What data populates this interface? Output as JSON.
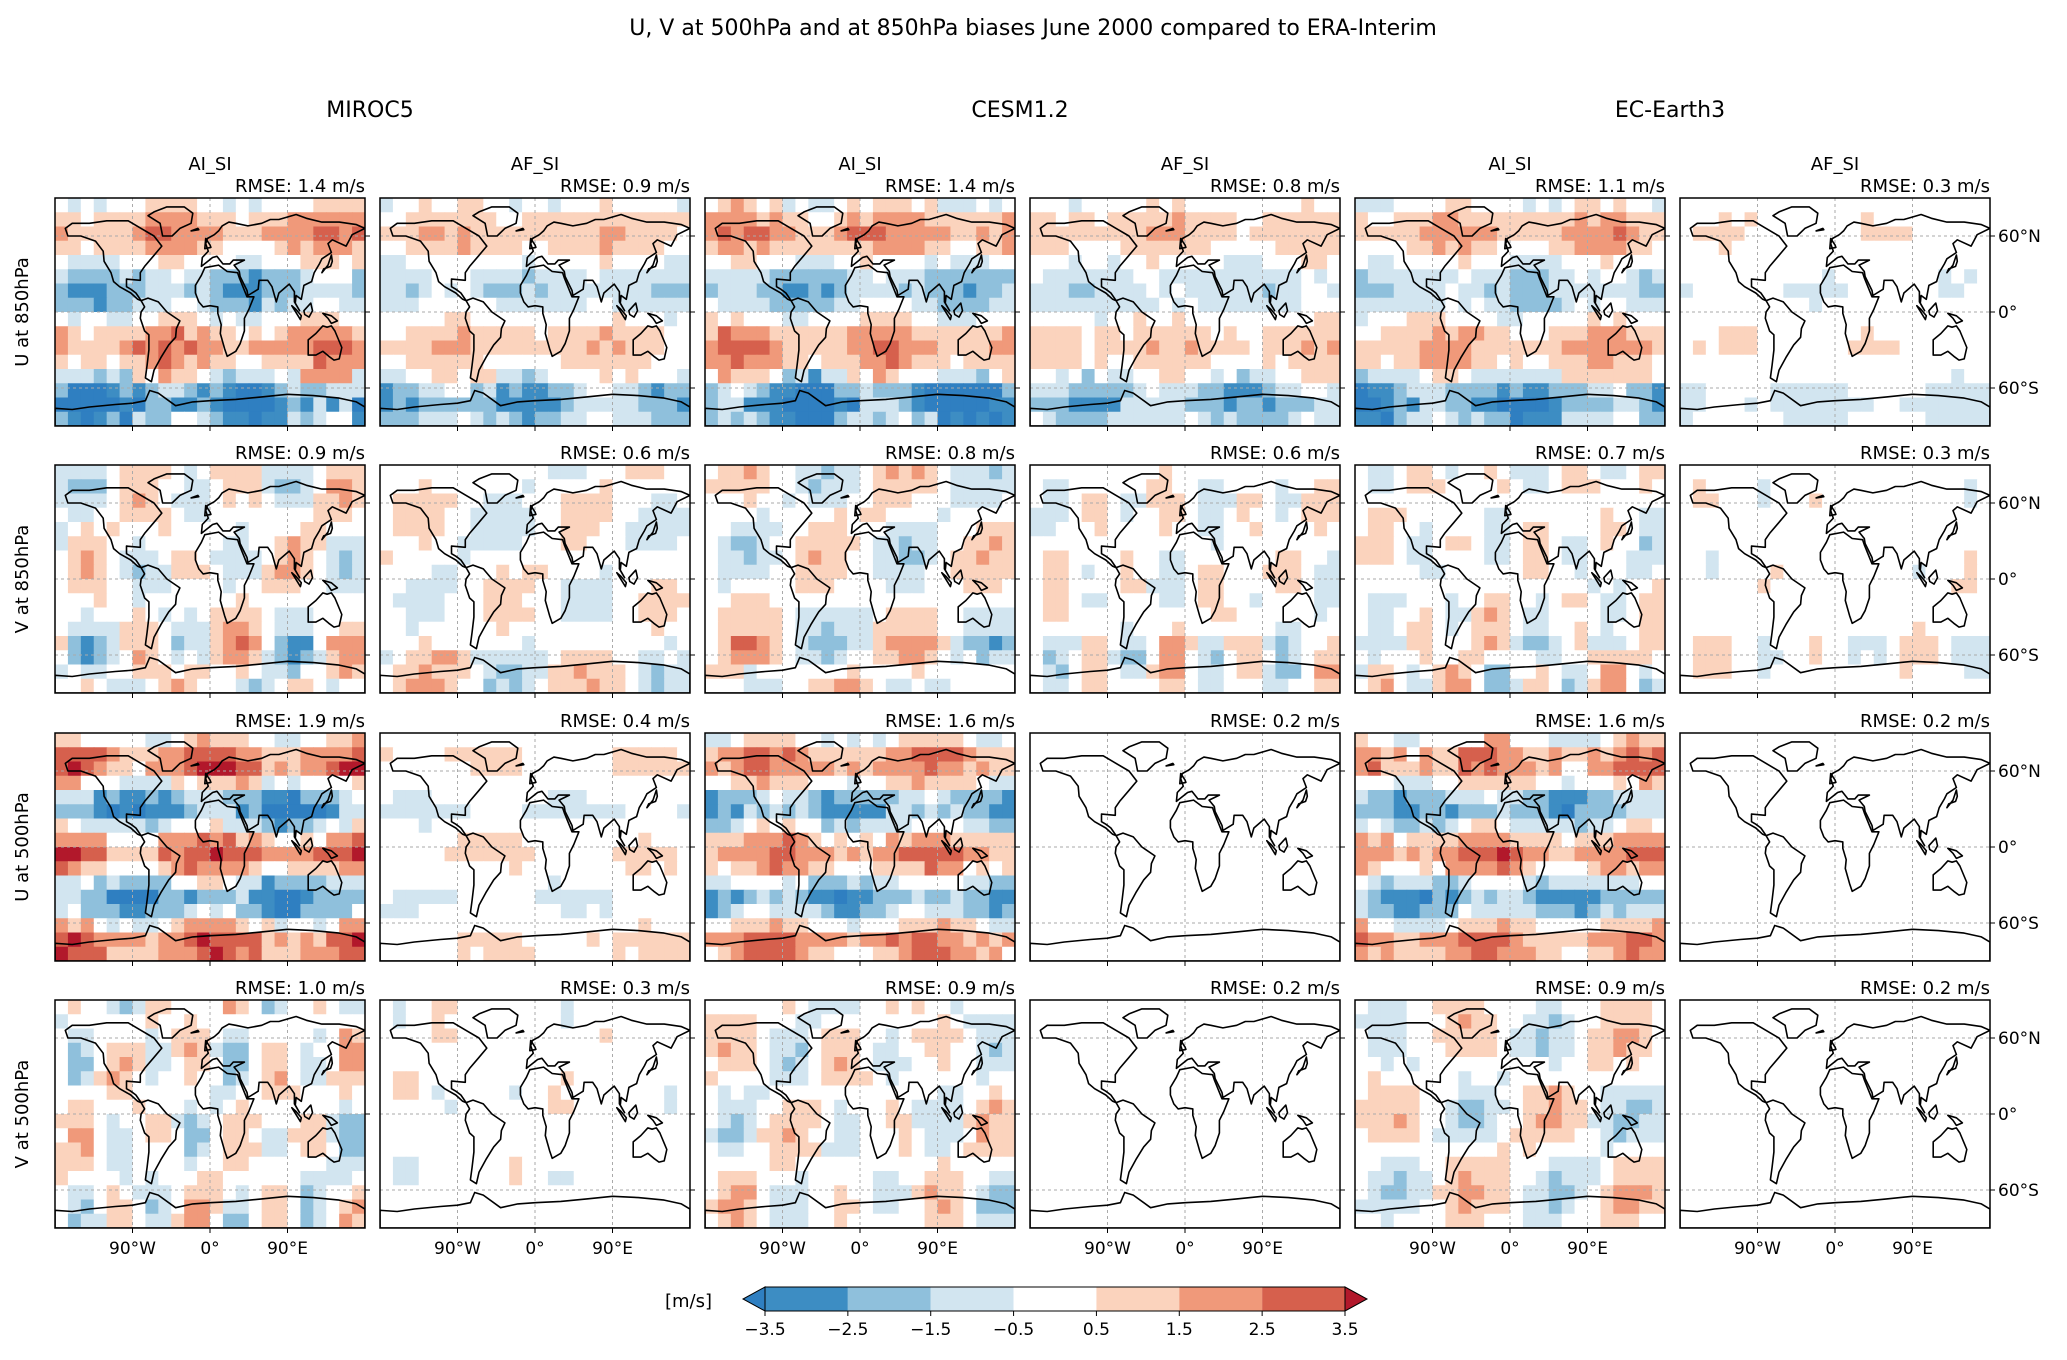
{
  "chart_data": {
    "type": "heatmap",
    "title": "U, V at 500hPa and at 850hPa biases June 2000 compared to ERA-Interim",
    "models": [
      "MIROC5",
      "CESM1.2",
      "EC-Earth3"
    ],
    "experiments": [
      "AI_SI",
      "AF_SI"
    ],
    "variables": [
      "U at 850hPa",
      "V at 850hPa",
      "U at 500hPa",
      "V at 500hPa"
    ],
    "rmse_unit": "m/s",
    "rmse_prefix": "RMSE:",
    "rmse": [
      [
        1.4,
        0.9,
        1.4,
        0.8,
        1.1,
        0.3
      ],
      [
        0.9,
        0.6,
        0.8,
        0.6,
        0.7,
        0.3
      ],
      [
        1.9,
        0.4,
        1.6,
        0.2,
        1.6,
        0.2
      ],
      [
        1.0,
        0.3,
        0.9,
        0.2,
        0.9,
        0.2
      ]
    ],
    "lon_ticks": [
      "90°W",
      "0°",
      "90°E"
    ],
    "lat_ticks": [
      "60°N",
      "0°",
      "60°S"
    ],
    "lon_range": [
      -180,
      180
    ],
    "lat_range": [
      -90,
      90
    ],
    "colorbar": {
      "label": "[m/s]",
      "boundaries": [
        -3.5,
        -2.5,
        -1.5,
        -0.5,
        0.5,
        1.5,
        2.5,
        3.5
      ],
      "tick_labels": [
        "−3.5",
        "−2.5",
        "−1.5",
        "−0.5",
        "0.5",
        "1.5",
        "2.5",
        "3.5"
      ],
      "colors": [
        "#2f7fc1",
        "#3d8dc3",
        "#8fc0dc",
        "#d2e5f0",
        "#ffffff",
        "#fbd3bd",
        "#f0997a",
        "#d6604d",
        "#b2182b"
      ],
      "extend": "both"
    }
  }
}
